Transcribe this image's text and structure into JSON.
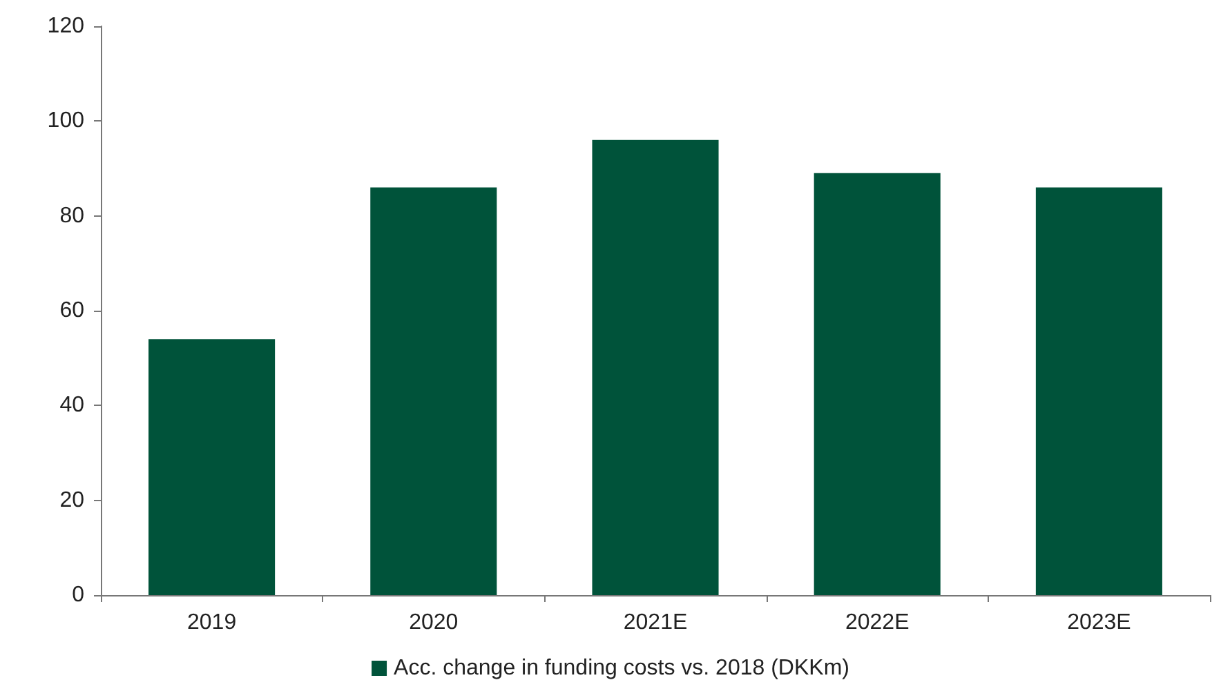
{
  "chart_data": {
    "type": "bar",
    "categories": [
      "2019",
      "2020",
      "2021E",
      "2022E",
      "2023E"
    ],
    "series": [
      {
        "name": "Acc. change in funding costs vs. 2018 (DKKm)",
        "color": "#00533a",
        "values": [
          54,
          86,
          96,
          89,
          86
        ]
      }
    ],
    "ylim": [
      0,
      120
    ],
    "yticks": [
      0,
      20,
      40,
      60,
      80,
      100,
      120
    ],
    "grid": false,
    "legend": "bottom"
  }
}
